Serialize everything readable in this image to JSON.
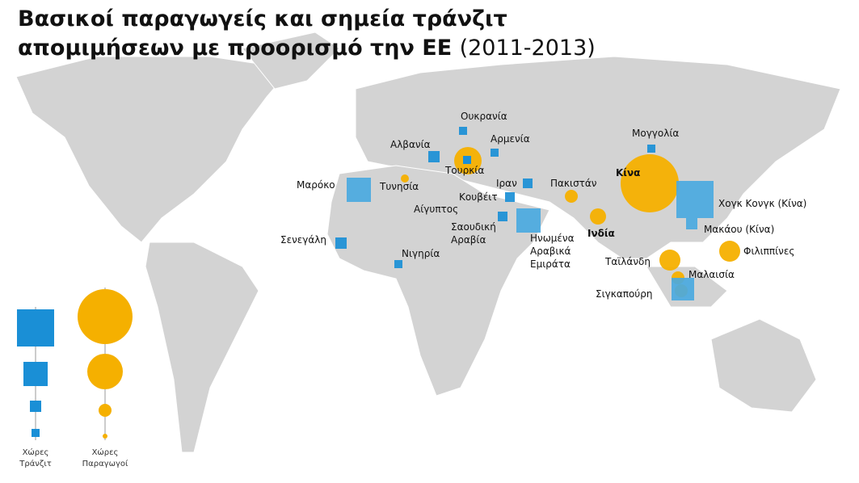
{
  "header": {
    "title_line1": "Βασικοί παραγωγείς και σημεία τράνζιτ",
    "title_line2": "απομιμήσεων με προορισμό την ΕΕ",
    "title_years": "(2011-2013)"
  },
  "labels": [
    {
      "lines": [
        "Ουκρανία"
      ]
    },
    {
      "lines": [
        "Αρμενία"
      ]
    },
    {
      "lines": [
        "Αλβανία"
      ]
    },
    {
      "lines": [
        "Τουρκία"
      ]
    },
    {
      "lines": [
        "Ιραν"
      ]
    },
    {
      "lines": [
        "Πακιστάν"
      ]
    },
    {
      "lines": [
        "Κίνα"
      ]
    },
    {
      "lines": [
        "Μογγολία"
      ]
    },
    {
      "lines": [
        "Μαρόκο"
      ]
    },
    {
      "lines": [
        "Τυνησία"
      ]
    },
    {
      "lines": [
        "Κουβέιτ"
      ]
    },
    {
      "lines": [
        "Αίγυπτος"
      ]
    },
    {
      "lines": [
        "Σαουδική",
        "Αραβία"
      ]
    },
    {
      "lines": [
        "Ηνωμένα",
        "Αραβικά",
        "Εμιράτα"
      ]
    },
    {
      "lines": [
        "Χογκ Κονγκ (Κίνα)"
      ]
    },
    {
      "lines": [
        "Μακάου (Κίνα)"
      ]
    },
    {
      "lines": [
        "Ινδία"
      ]
    },
    {
      "lines": [
        "Σενεγάλη"
      ]
    },
    {
      "lines": [
        "Νιγηρία"
      ]
    },
    {
      "lines": [
        "Φιλιππίνες"
      ]
    },
    {
      "lines": [
        "Ταϊλάνδη"
      ]
    },
    {
      "lines": [
        "Μαλαισία"
      ]
    },
    {
      "lines": [
        "Σιγκαπούρη"
      ]
    }
  ],
  "legend": {
    "transit": [
      "Χώρες",
      "Τράνζιτ"
    ],
    "producers": [
      "Χώρες",
      "Παραγωγοί"
    ]
  }
}
